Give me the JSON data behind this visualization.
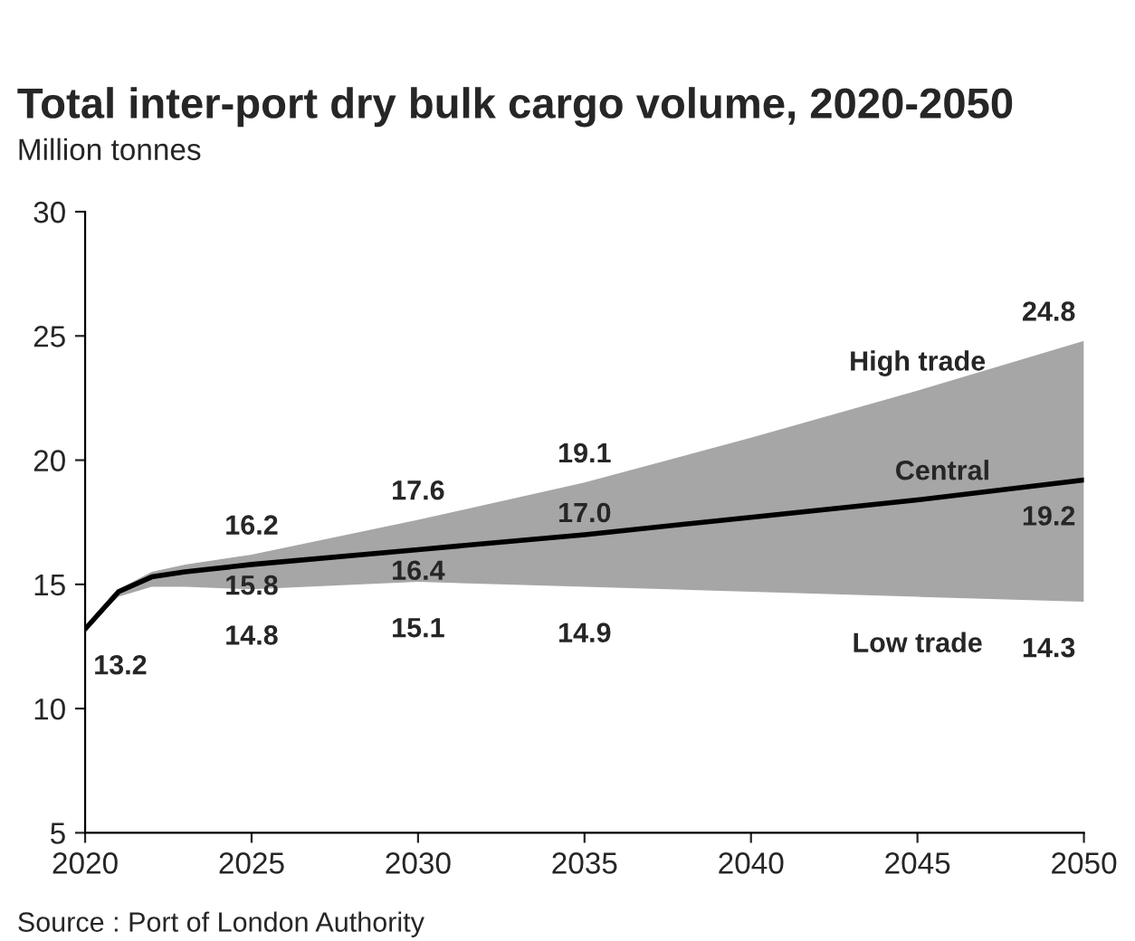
{
  "chart_data": {
    "type": "line",
    "title": "Total inter-port dry bulk cargo volume, 2020-2050",
    "subtitle": "Million tonnes",
    "x": [
      2020,
      2021,
      2022,
      2023,
      2025,
      2030,
      2035,
      2040,
      2045,
      2050
    ],
    "series": [
      {
        "name": "Central",
        "color": "#000000",
        "values": [
          13.2,
          14.7,
          15.3,
          15.5,
          15.8,
          16.4,
          17.0,
          17.7,
          18.4,
          19.2
        ],
        "lower": [
          13.2,
          14.5,
          14.9,
          14.9,
          14.8,
          15.1,
          14.9,
          14.7,
          14.5,
          14.3
        ],
        "upper": [
          13.2,
          14.8,
          15.5,
          15.8,
          16.2,
          17.6,
          19.1,
          20.9,
          22.8,
          24.8
        ],
        "value_labels": [
          "13.2",
          null,
          null,
          null,
          "15.8",
          "16.4",
          "17.0",
          null,
          null,
          "19.2"
        ]
      }
    ],
    "annotations": [
      {
        "text": "16.2",
        "x": 2025,
        "y": 16.2
      },
      {
        "text": "17.6",
        "x": 2030,
        "y": 17.6
      },
      {
        "text": "19.1",
        "x": 2035,
        "y": 19.1
      },
      {
        "text": "24.8",
        "x": 2050,
        "y": 24.8
      },
      {
        "text": "14.8",
        "x": 2025,
        "y": 14.8
      },
      {
        "text": "15.1",
        "x": 2030,
        "y": 15.1
      },
      {
        "text": "14.9",
        "x": 2035,
        "y": 14.9
      },
      {
        "text": "14.3",
        "x": 2050,
        "y": 14.3
      },
      {
        "text": "High trade",
        "x": 2045,
        "y": 22.8
      },
      {
        "text": "Low trade",
        "x": 2045,
        "y": 14.5
      },
      "Source : Port of London Authority"
    ],
    "xlim": [
      2020,
      2050
    ],
    "xticks": [
      2020,
      2025,
      2030,
      2035,
      2040,
      2045,
      2050
    ],
    "ylim": [
      5,
      30
    ],
    "yticks": [
      5,
      10,
      15,
      20,
      25,
      30
    ],
    "grid": false,
    "legend": false
  }
}
